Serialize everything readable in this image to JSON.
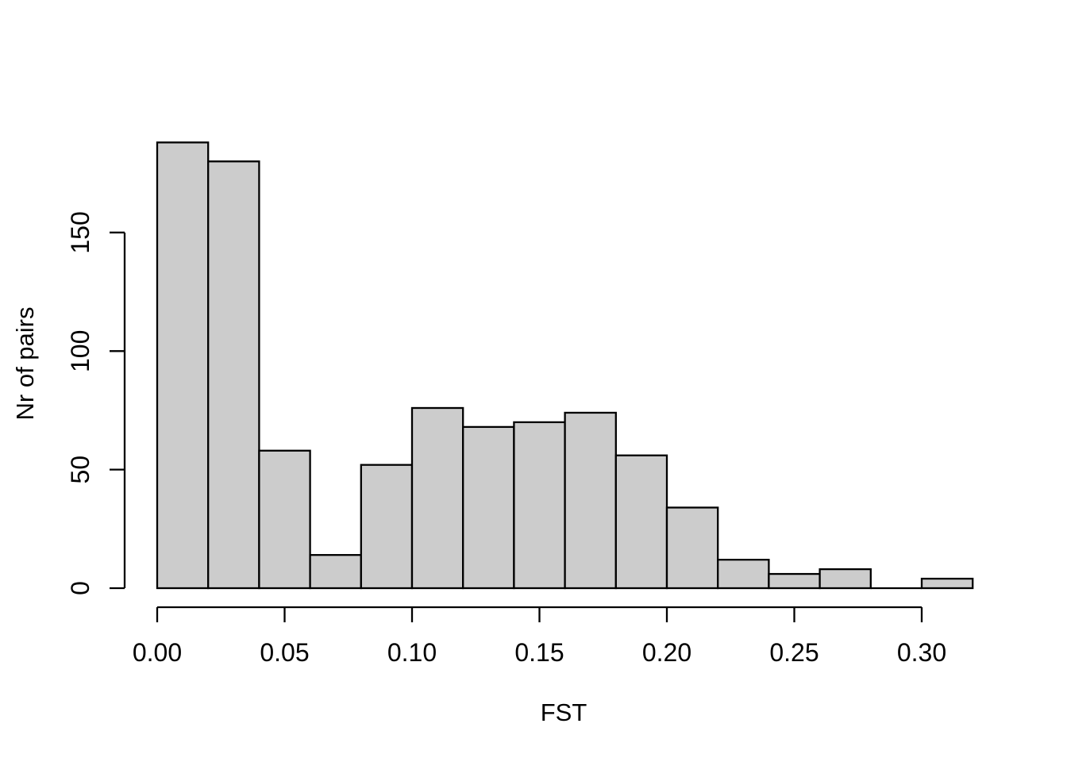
{
  "chart_data": {
    "type": "bar",
    "subtype": "histogram",
    "title": "",
    "xlabel": "FST",
    "ylabel": "Nr of pairs",
    "bin_width": 0.02,
    "bin_edges": [
      0.0,
      0.02,
      0.04,
      0.06,
      0.08,
      0.1,
      0.12,
      0.14,
      0.16,
      0.18,
      0.2,
      0.22,
      0.24,
      0.26,
      0.28,
      0.3,
      0.32
    ],
    "counts": [
      188,
      180,
      58,
      14,
      52,
      76,
      68,
      70,
      74,
      56,
      34,
      12,
      6,
      8,
      0,
      4
    ],
    "x_tick_values": [
      0.0,
      0.05,
      0.1,
      0.15,
      0.2,
      0.25,
      0.3
    ],
    "x_tick_labels": [
      "0.00",
      "0.05",
      "0.10",
      "0.15",
      "0.20",
      "0.25",
      "0.30"
    ],
    "y_tick_values": [
      0,
      50,
      100,
      150
    ],
    "y_tick_labels": [
      "0",
      "50",
      "100",
      "150"
    ],
    "xlim": [
      0.0,
      0.32
    ],
    "y_axis_range": [
      0,
      150
    ],
    "grid": false,
    "legend": false,
    "bar_fill": "#CCCCCC",
    "bar_stroke": "#000000",
    "axis_color": "#000000",
    "background": "#FFFFFF"
  }
}
